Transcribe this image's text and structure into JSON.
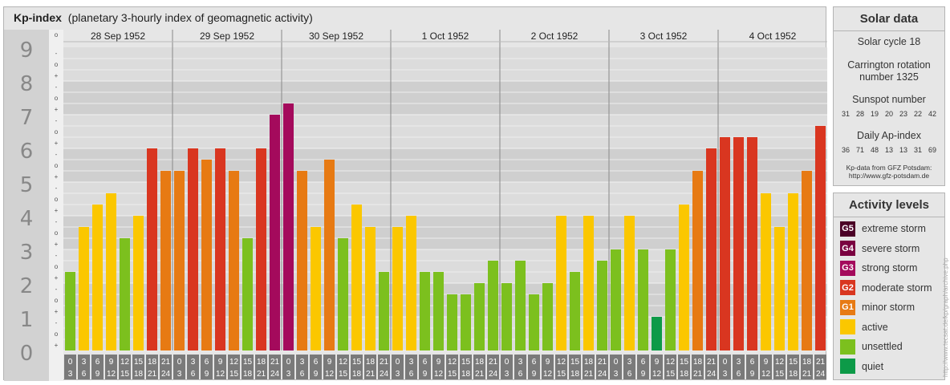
{
  "header": {
    "title": "Kp-index",
    "subtitle": "(planetary 3-hourly index of geomagnetic activity)"
  },
  "chart_data": {
    "type": "bar",
    "title": "Kp-index",
    "subtitle": "(planetary 3-hourly index of geomagnetic activity)",
    "days": [
      "28 Sep 1952",
      "29 Sep 1952",
      "30 Sep 1952",
      "1 Oct 1952",
      "2 Oct 1952",
      "3 Oct 1952",
      "4 Oct 1952"
    ],
    "y_ticks": [
      "0",
      "1",
      "2",
      "3",
      "4",
      "5",
      "6",
      "7",
      "8",
      "9"
    ],
    "sub_ticks": [
      "+",
      "o",
      "-"
    ],
    "ylim": [
      0,
      9
    ],
    "interval_top": [
      "0",
      "3",
      "6",
      "9",
      "12",
      "15",
      "18",
      "21"
    ],
    "interval_bottom": [
      "3",
      "6",
      "9",
      "12",
      "15",
      "18",
      "21",
      "24"
    ],
    "values": [
      2.333,
      3.667,
      4.333,
      4.667,
      3.333,
      4,
      6,
      5.333,
      5.333,
      6,
      5.667,
      6,
      5.333,
      3.333,
      6,
      7,
      7.333,
      5.333,
      3.667,
      5.667,
      3.333,
      4.333,
      3.667,
      2.333,
      3.667,
      4,
      2.333,
      2.333,
      1.667,
      1.667,
      2,
      2.667,
      2,
      2.667,
      1.667,
      2,
      4,
      2.333,
      4,
      2.667,
      3,
      4,
      3,
      1,
      3,
      4.333,
      5.333,
      6,
      6.333,
      6.333,
      6.333,
      4.667,
      3.667,
      4.667,
      5.333,
      6.667
    ],
    "colors": {
      "quiet": "#0d9a48",
      "unsettled": "#7cc01e",
      "active": "#fbc700",
      "G1": "#e77a13",
      "G2": "#d93620",
      "G3": "#a40a5c",
      "G4": "#7a0140",
      "G5": "#4b0026"
    }
  },
  "solar": {
    "heading": "Solar data",
    "cycle": "Solar cycle 18",
    "carrington_1": "Carrington rotation",
    "carrington_2": "number 1325",
    "sunspot_label": "Sunspot number",
    "sunspot": [
      "31",
      "28",
      "19",
      "20",
      "23",
      "22",
      "42"
    ],
    "ap_label": "Daily Ap-index",
    "ap": [
      "36",
      "71",
      "48",
      "13",
      "13",
      "31",
      "69"
    ],
    "source_1": "Kp-data from GFZ Potsdam:",
    "source_2": "http://www.gfz-potsdam.de"
  },
  "levels": {
    "heading": "Activity levels",
    "items": [
      {
        "badge": "G5",
        "label": "extreme storm",
        "color": "#4b0026"
      },
      {
        "badge": "G4",
        "label": "severe storm",
        "color": "#7a0140"
      },
      {
        "badge": "G3",
        "label": "strong storm",
        "color": "#a40a5c"
      },
      {
        "badge": "G2",
        "label": "moderate storm",
        "color": "#d93620"
      },
      {
        "badge": "G1",
        "label": "minor storm",
        "color": "#e77a13"
      },
      {
        "badge": "",
        "label": "active",
        "color": "#fbc700"
      },
      {
        "badge": "",
        "label": "unsettled",
        "color": "#7cc01e"
      },
      {
        "badge": "",
        "label": "quiet",
        "color": "#0d9a48"
      }
    ]
  },
  "credit": "http://www.tecsat.de/kp/graph/archive.php"
}
